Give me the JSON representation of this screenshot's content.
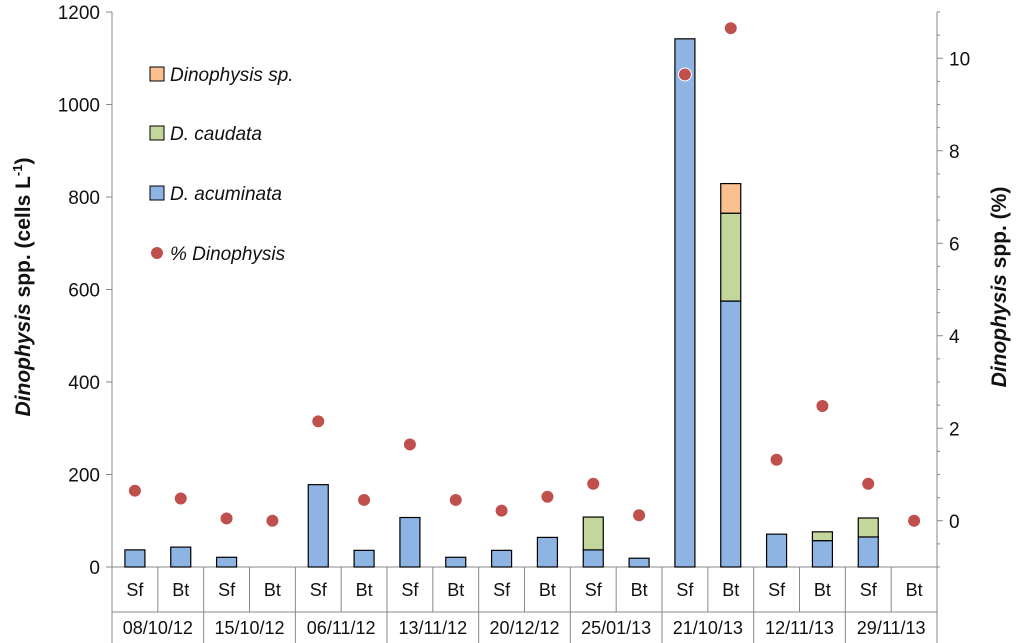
{
  "chart_data": {
    "type": "bar",
    "stacked": true,
    "categories": [
      {
        "sub": "Sf",
        "date": "08/10/12"
      },
      {
        "sub": "Bt",
        "date": "08/10/12"
      },
      {
        "sub": "Sf",
        "date": "15/10/12"
      },
      {
        "sub": "Bt",
        "date": "15/10/12"
      },
      {
        "sub": "Sf",
        "date": "06/11/12"
      },
      {
        "sub": "Bt",
        "date": "06/11/12"
      },
      {
        "sub": "Sf",
        "date": "13/11/12"
      },
      {
        "sub": "Bt",
        "date": "13/11/12"
      },
      {
        "sub": "Sf",
        "date": "20/12/12"
      },
      {
        "sub": "Bt",
        "date": "20/12/12"
      },
      {
        "sub": "Sf",
        "date": "25/01/13"
      },
      {
        "sub": "Bt",
        "date": "25/01/13"
      },
      {
        "sub": "Sf",
        "date": "21/10/13"
      },
      {
        "sub": "Bt",
        "date": "21/10/13"
      },
      {
        "sub": "Sf",
        "date": "12/11/13"
      },
      {
        "sub": "Bt",
        "date": "12/11/13"
      },
      {
        "sub": "Sf",
        "date": "29/11/13"
      },
      {
        "sub": "Bt",
        "date": "29/11/13"
      }
    ],
    "dates": [
      "08/10/12",
      "15/10/12",
      "06/11/12",
      "13/11/12",
      "20/12/12",
      "25/01/13",
      "21/10/13",
      "12/11/13",
      "29/11/13"
    ],
    "series": [
      {
        "name": "D. acuminata",
        "color": "#8eb4e3",
        "axis": "left",
        "values": [
          37,
          43,
          21,
          0,
          178,
          36,
          107,
          21,
          36,
          64,
          37,
          19,
          1142,
          575,
          71,
          57,
          65,
          0
        ]
      },
      {
        "name": "D. caudata",
        "color": "#c3d69b",
        "axis": "left",
        "values": [
          0,
          0,
          0,
          0,
          0,
          0,
          0,
          0,
          0,
          0,
          71,
          0,
          0,
          190,
          0,
          19,
          41,
          0
        ]
      },
      {
        "name": "Dinophysis sp.",
        "color": "#fac090",
        "axis": "left",
        "values": [
          0,
          0,
          0,
          0,
          0,
          0,
          0,
          0,
          0,
          0,
          0,
          0,
          0,
          64,
          0,
          0,
          0,
          0
        ]
      },
      {
        "name": "% Dinophysis",
        "color": "#c0504d",
        "axis": "right",
        "kind": "scatter",
        "values": [
          0.65,
          0.48,
          0.05,
          0.0,
          2.15,
          0.45,
          1.65,
          0.45,
          0.22,
          0.52,
          0.8,
          0.12,
          9.65,
          10.65,
          1.32,
          2.48,
          0.8,
          0.0
        ]
      }
    ],
    "legend": [
      "Dinophysis sp.",
      "D. caudata",
      "D. acuminata",
      "% Dinophysis"
    ],
    "ylabel_left": {
      "italic": "Dinophysis",
      "bold": " spp.  (cells L",
      "sup": "-1",
      "tail": ")"
    },
    "ylabel_right": {
      "italic": "Dinophysis",
      "bold": " spp. (%)"
    },
    "ylim_left": [
      0,
      1200
    ],
    "yticks_left": [
      "0",
      "200",
      "400",
      "600",
      "800",
      "1000",
      "1200"
    ],
    "ylim_right": [
      -1,
      11
    ],
    "yticks_right": [
      "0",
      "2",
      "4",
      "6",
      "8",
      "10"
    ]
  }
}
